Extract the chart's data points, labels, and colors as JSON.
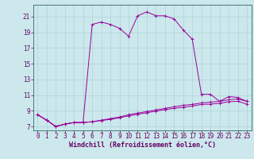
{
  "xlabel": "Windchill (Refroidissement éolien,°C)",
  "background_color": "#cce8ec",
  "grid_color": "#aad4d8",
  "line_color": "#990099",
  "x_hours": [
    0,
    1,
    2,
    3,
    4,
    5,
    6,
    7,
    8,
    9,
    10,
    11,
    12,
    13,
    14,
    15,
    16,
    17,
    18,
    19,
    20,
    21,
    22,
    23
  ],
  "line1_y": [
    8.5,
    7.8,
    7.0,
    7.3,
    7.5,
    7.5,
    20.0,
    20.3,
    20.0,
    19.5,
    18.5,
    21.1,
    21.6,
    21.1,
    21.1,
    20.7,
    19.3,
    18.1,
    11.1,
    11.1,
    10.2,
    10.8,
    10.7,
    10.2
  ],
  "line2_y": [
    8.5,
    7.8,
    7.0,
    7.3,
    7.5,
    7.5,
    7.6,
    7.8,
    8.0,
    8.2,
    8.5,
    8.7,
    8.9,
    9.1,
    9.3,
    9.5,
    9.7,
    9.8,
    10.0,
    10.1,
    10.2,
    10.4,
    10.5,
    10.2
  ],
  "line3_y": [
    8.5,
    7.8,
    7.0,
    7.3,
    7.5,
    7.5,
    7.6,
    7.75,
    7.9,
    8.1,
    8.35,
    8.55,
    8.75,
    8.95,
    9.15,
    9.3,
    9.45,
    9.6,
    9.8,
    9.85,
    9.95,
    10.15,
    10.2,
    9.85
  ],
  "ylim": [
    6.5,
    22.5
  ],
  "yticks": [
    7,
    9,
    11,
    13,
    15,
    17,
    19,
    21
  ],
  "xlim": [
    -0.5,
    23.5
  ],
  "xticks": [
    0,
    1,
    2,
    3,
    4,
    5,
    6,
    7,
    8,
    9,
    10,
    11,
    12,
    13,
    14,
    15,
    16,
    17,
    18,
    19,
    20,
    21,
    22,
    23
  ],
  "tick_fontsize": 5.5,
  "xlabel_fontsize": 6.0,
  "axis_color": "#660066",
  "spine_color": "#336666"
}
